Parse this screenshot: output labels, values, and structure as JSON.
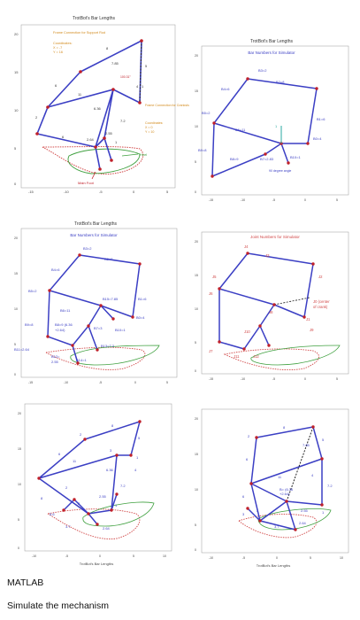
{
  "panels": {
    "p1": {
      "title": "TrotBot's Bar Lengths",
      "yticks": [
        "20",
        "15",
        "10",
        "5",
        "0"
      ],
      "xticks": [
        "-15",
        "-10",
        "-5",
        "0",
        "5"
      ],
      "bars": [
        "8",
        "5",
        "7.85",
        "6",
        "11",
        "6.36",
        "4",
        "7.2",
        "2.55",
        "1",
        "2.64",
        "6",
        "2",
        "1"
      ],
      "annotations": {
        "frame_support": "Frame Connection for Support Rod",
        "coord_support_title": "Coordinates:",
        "coord_support_x": "X = -7",
        "coord_support_y": "Y = 16",
        "frame_crank": "Frame Connection for Crankshaft",
        "coord_crank_title": "Coordinates:",
        "coord_crank_x": "X = 0",
        "coord_crank_y": "Y = 10",
        "small_angle": "100.31°",
        "heel": "Heel",
        "main_foot": "Main Foot"
      }
    },
    "p2": {
      "title": "TrotBot's Bar Lengths",
      "subtitle": "Bar Numbers for Simulator",
      "yticks": [
        "20",
        "15",
        "10",
        "5",
        "0"
      ],
      "xticks": [
        "-15",
        "-10",
        "-5",
        "0",
        "5"
      ],
      "labels": [
        "B3=2",
        "B2=8",
        "B4=6",
        "B5=2",
        "B6=11",
        "B1=6",
        "B9=8",
        "B0=4",
        "B8=9",
        "B7=2.83",
        "B10=1",
        "1",
        "90 degree angle"
      ]
    },
    "p3": {
      "title": "TrotBot's Bar Lengths",
      "subtitle": "Bar Numbers for Simulator",
      "yticks": [
        "20",
        "15",
        "10",
        "5",
        "0"
      ],
      "xticks": [
        "-15",
        "-10",
        "-5",
        "0",
        "5"
      ],
      "labels": [
        "B3=2",
        "B2=8",
        "B4=6",
        "B5=2",
        "B15=7.85",
        "B1=6",
        "B6=11",
        "B0=4",
        "B9=8",
        "B8=9 (6.36",
        "+2.64)",
        "B7=3",
        "B10=1",
        "B11=2.64",
        "B13=7.2",
        "B12=",
        "2.55",
        "B14=1"
      ]
    },
    "p4": {
      "title": "Joint Numbers for Simulator",
      "yticks": [
        "20",
        "15",
        "10",
        "5",
        "0"
      ],
      "xticks": [
        "-15",
        "-10",
        "-5",
        "0",
        "5"
      ],
      "labels": [
        "J4",
        "J3",
        "J5",
        "J2",
        "J6",
        "J0 (center",
        "of crank)",
        "J8",
        "J1",
        "J9",
        "J10",
        "J7",
        "J11",
        "J12"
      ]
    },
    "p5": {
      "yticks": [
        "20",
        "15",
        "10",
        "5",
        "0"
      ],
      "xticks": [
        "-10",
        "-5",
        "0",
        "5",
        "10"
      ],
      "xlabel": "TrotBot's Bar Lengths",
      "bars": [
        "8",
        "2",
        "5",
        "6",
        "11",
        "3",
        "1",
        "6.36",
        "4",
        "7.2",
        "2.55",
        "2.64",
        "1",
        "8",
        "2",
        "3.7",
        "5.6",
        "2"
      ]
    },
    "p6": {
      "yticks": [
        "20",
        "15",
        "10",
        "5",
        "0"
      ],
      "xticks": [
        "-10",
        "-5",
        "0",
        "5",
        "10"
      ],
      "xlabel": "TrotBot's Bar Lengths",
      "bars": [
        "8",
        "2",
        "7.85",
        "5",
        "6",
        "4",
        "11",
        "7.2",
        "B= (6.36",
        "+2.64)",
        "2.55",
        "1",
        "3.7",
        "2.64",
        "6",
        "2",
        "3"
      ]
    }
  },
  "caption": {
    "line1": "MATLAB",
    "line2": "Simulate the mechanism"
  },
  "colors": {
    "link": "#3b3fc4",
    "joint": "#c0202a",
    "redpath": "#d14848",
    "greenpath": "#3fa03f",
    "frame": "#d28a1c",
    "annot": "#d28a1c"
  }
}
